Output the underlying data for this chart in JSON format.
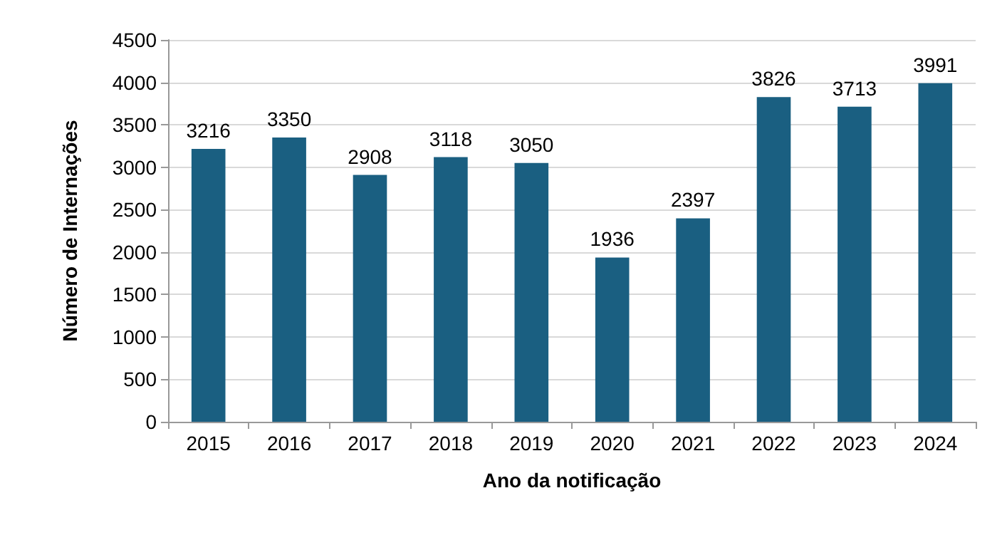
{
  "chart_data": {
    "type": "bar",
    "xlabel": "Ano da notificação",
    "ylabel": "Número de Internações",
    "categories": [
      "2015",
      "2016",
      "2017",
      "2018",
      "2019",
      "2020",
      "2021",
      "2022",
      "2023",
      "2024"
    ],
    "values": [
      3216,
      3350,
      2908,
      3118,
      3050,
      1936,
      2397,
      3826,
      3713,
      3991
    ],
    "color": "#1a5f81",
    "ylim": [
      0,
      4500
    ],
    "yticks": [
      0,
      500,
      1000,
      1500,
      2000,
      2500,
      3000,
      3500,
      4000,
      4500
    ],
    "grid": "y",
    "data_labels": true
  }
}
